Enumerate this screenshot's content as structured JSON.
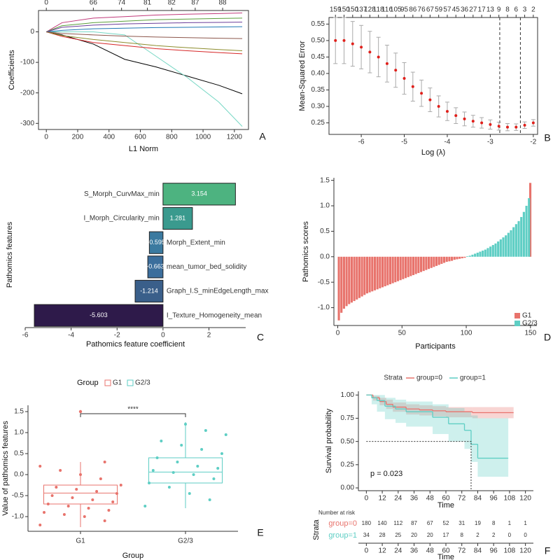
{
  "chart_data": [
    {
      "type": "line",
      "panel_label": "A",
      "xlabel": "L1 Norm",
      "ylabel": "Coefficients",
      "xlim": [
        -50,
        1290
      ],
      "ylim": [
        -320,
        70
      ],
      "xticks": [
        0,
        200,
        400,
        600,
        800,
        1000,
        1200
      ],
      "yticks": [
        0,
        -100,
        -200,
        -300
      ],
      "top_ticks": [
        {
          "value": 0,
          "label": "0"
        },
        {
          "value": 300,
          "label": "66"
        },
        {
          "value": 480,
          "label": "74"
        },
        {
          "value": 645,
          "label": "81"
        },
        {
          "value": 800,
          "label": "82"
        },
        {
          "value": 950,
          "label": "87"
        },
        {
          "value": 1125,
          "label": "88"
        }
      ],
      "x": [
        0,
        100,
        300,
        500,
        700,
        900,
        1100,
        1250
      ],
      "series": [
        {
          "color": "#000000",
          "values": [
            0,
            -10,
            -40,
            -90,
            -115,
            -145,
            -175,
            -203
          ]
        },
        {
          "color": "#76d7c4",
          "values": [
            0,
            0,
            0,
            -10,
            -80,
            -150,
            -230,
            -310
          ]
        },
        {
          "color": "#c0397a",
          "values": [
            0,
            30,
            45,
            50,
            55,
            58,
            60,
            62
          ]
        },
        {
          "color": "#5a9e3a",
          "values": [
            0,
            20,
            30,
            35,
            40,
            42,
            44,
            45
          ]
        },
        {
          "color": "#6a3d9a",
          "values": [
            0,
            15,
            22,
            26,
            28,
            30,
            31,
            32
          ]
        },
        {
          "color": "#d62728",
          "values": [
            0,
            -15,
            -35,
            -45,
            -55,
            -62,
            -68,
            -72
          ]
        },
        {
          "color": "#8c8c2c",
          "values": [
            0,
            -12,
            -25,
            -35,
            -45,
            -52,
            -58,
            -62
          ]
        },
        {
          "color": "#1f77b4",
          "values": [
            0,
            5,
            10,
            12,
            14,
            15,
            16,
            17
          ]
        },
        {
          "color": "#8c564b",
          "values": [
            0,
            -5,
            -10,
            -14,
            -17,
            -19,
            -21,
            -22
          ]
        }
      ]
    },
    {
      "type": "errorbar",
      "panel_label": "B",
      "xlabel": "Log (λ)",
      "ylabel": "Mean-Squared Error",
      "xlim": [
        -6.75,
        -1.9
      ],
      "ylim": [
        0.215,
        0.57
      ],
      "xticks": [
        -6,
        -5,
        -4,
        -3,
        -2
      ],
      "yticks": [
        0.25,
        {
          "value": 0.3,
          "label": "0.30"
        },
        0.35,
        {
          "value": 0.4,
          "label": "0.40"
        },
        0.45,
        {
          "value": 0.5,
          "label": "0.50"
        },
        0.55
      ],
      "x": [
        -6.6,
        -6.4,
        -6.2,
        -6.0,
        -5.8,
        -5.6,
        -5.4,
        -5.2,
        -5.0,
        -4.8,
        -4.6,
        -4.4,
        -4.2,
        -4.0,
        -3.8,
        -3.6,
        -3.4,
        -3.2,
        -3.0,
        -2.8,
        -2.6,
        -2.4,
        -2.2,
        -2.0
      ],
      "values": [
        0.5,
        0.5,
        0.49,
        0.48,
        0.465,
        0.45,
        0.43,
        0.41,
        0.385,
        0.36,
        0.34,
        0.32,
        0.3,
        0.285,
        0.272,
        0.262,
        0.255,
        0.25,
        0.245,
        0.24,
        0.237,
        0.237,
        0.243,
        0.25
      ],
      "errors": [
        0.07,
        0.07,
        0.068,
        0.066,
        0.063,
        0.06,
        0.056,
        0.052,
        0.048,
        0.044,
        0.04,
        0.036,
        0.032,
        0.028,
        0.024,
        0.021,
        0.018,
        0.016,
        0.014,
        0.012,
        0.011,
        0.01,
        0.01,
        0.01
      ],
      "color": "#e0201b",
      "error_color": "#aaaaaa",
      "vlines": [
        -2.78,
        -2.3
      ],
      "top_ticks": [
        {
          "value": -6.6,
          "label": "159"
        },
        {
          "value": -6.4,
          "label": "150"
        },
        {
          "value": -6.2,
          "label": "150"
        },
        {
          "value": -6.0,
          "label": "137"
        },
        {
          "value": -5.8,
          "label": "128"
        },
        {
          "value": -5.6,
          "label": "118"
        },
        {
          "value": -5.4,
          "label": "116"
        },
        {
          "value": -5.2,
          "label": "105"
        },
        {
          "value": -5.0,
          "label": "95"
        },
        {
          "value": -4.8,
          "label": "86"
        },
        {
          "value": -4.6,
          "label": "76"
        },
        {
          "value": -4.4,
          "label": "67"
        },
        {
          "value": -4.2,
          "label": "59"
        },
        {
          "value": -4.0,
          "label": "57"
        },
        {
          "value": -3.8,
          "label": "45"
        },
        {
          "value": -3.6,
          "label": "36"
        },
        {
          "value": -3.4,
          "label": "27"
        },
        {
          "value": -3.2,
          "label": "17"
        },
        {
          "value": -3.0,
          "label": "13"
        },
        {
          "value": -2.8,
          "label": "9"
        },
        {
          "value": -2.6,
          "label": "8"
        },
        {
          "value": -2.4,
          "label": "6"
        },
        {
          "value": -2.2,
          "label": "3"
        },
        {
          "value": -2.0,
          "label": "2"
        }
      ]
    },
    {
      "type": "bar",
      "orientation": "horizontal",
      "panel_label": "C",
      "xlabel": "Pathomics feature coefficient",
      "ylabel": "Pathomics features",
      "xlim": [
        -6,
        3.6
      ],
      "xticks": [
        -6,
        -4,
        -2,
        0,
        2
      ],
      "categories": [
        "S_Morph_CurvMax_min",
        "I_Morph_Circularity_min",
        "Morph_Extent_min",
        "mean_tumor_bed_solidity",
        "Graph_I.S_minEdgeLength_max",
        "I_Texture_Homogeneity_mean"
      ],
      "values": [
        3.154,
        1.281,
        -0.595,
        -0.663,
        -1.214,
        -5.603
      ],
      "colors": [
        "#4db380",
        "#3a9a8e",
        "#3b7aa0",
        "#3b6e9c",
        "#3a5f8a",
        "#2e1a4a"
      ]
    },
    {
      "type": "bar",
      "orientation": "vertical",
      "panel_label": "D",
      "xlabel": "Participants",
      "ylabel": "Pathomics scores",
      "xlim": [
        -3,
        155
      ],
      "ylim": [
        -1.35,
        1.55
      ],
      "xticks": [
        0,
        50,
        100,
        150
      ],
      "yticks": [
        {
          "value": -1,
          "label": "-1.0"
        },
        -0.5,
        {
          "value": 0,
          "label": "0.0"
        },
        0.5,
        {
          "value": 1,
          "label": "1.0"
        },
        1.5
      ],
      "series": [
        {
          "name": "G1",
          "color": "#e8736c",
          "x": [
            1,
            3,
            5,
            7,
            9,
            11,
            13,
            15,
            17,
            19,
            21,
            23,
            25,
            27,
            29,
            31,
            33,
            35,
            37,
            39,
            41,
            43,
            45,
            47,
            49,
            51,
            53,
            55,
            57,
            59,
            61,
            63,
            65,
            67,
            69,
            71,
            73,
            75,
            77,
            79,
            81,
            83,
            85,
            87,
            89,
            91,
            93,
            95,
            97,
            99,
            150
          ],
          "values": [
            -1.25,
            -1.1,
            -1.02,
            -0.97,
            -0.93,
            -0.9,
            -0.87,
            -0.84,
            -0.81,
            -0.78,
            -0.75,
            -0.72,
            -0.7,
            -0.68,
            -0.66,
            -0.64,
            -0.62,
            -0.6,
            -0.58,
            -0.56,
            -0.54,
            -0.52,
            -0.5,
            -0.48,
            -0.46,
            -0.44,
            -0.42,
            -0.4,
            -0.38,
            -0.36,
            -0.34,
            -0.32,
            -0.3,
            -0.28,
            -0.26,
            -0.24,
            -0.22,
            -0.2,
            -0.18,
            -0.16,
            -0.14,
            -0.12,
            -0.1,
            -0.09,
            -0.08,
            -0.06,
            -0.05,
            -0.04,
            -0.03,
            -0.02,
            1.45
          ]
        },
        {
          "name": "G2/3",
          "color": "#5ecec4",
          "x": [
            101,
            103,
            105,
            107,
            109,
            111,
            113,
            115,
            117,
            119,
            121,
            123,
            125,
            127,
            129,
            131,
            133,
            135,
            137,
            139,
            141,
            143,
            145,
            147,
            149
          ],
          "values": [
            0.01,
            0.02,
            0.04,
            0.06,
            0.08,
            0.1,
            0.12,
            0.14,
            0.17,
            0.2,
            0.23,
            0.26,
            0.3,
            0.34,
            0.38,
            0.42,
            0.47,
            0.52,
            0.58,
            0.64,
            0.7,
            0.78,
            0.88,
            1.0,
            1.15
          ]
        }
      ]
    },
    {
      "type": "box",
      "panel_label": "E",
      "xlabel": "Group",
      "ylabel": "Value of pathomics features",
      "legend_title": "Group",
      "annotation": "****",
      "ylim": [
        -1.35,
        1.65
      ],
      "yticks": [
        {
          "value": -1,
          "label": "-1.0"
        },
        -0.5,
        {
          "value": 0,
          "label": "0.0"
        },
        0.5,
        {
          "value": 1,
          "label": "1.0"
        },
        1.5
      ],
      "series": [
        {
          "name": "G1",
          "color": "#e8736c",
          "box": {
            "min": -1.25,
            "q1": -0.7,
            "median": -0.44,
            "q3": -0.25,
            "max": 0.3,
            "outliers": [
              1.5
            ]
          },
          "values": [
            -1.2,
            -1.1,
            -1.0,
            -0.95,
            -0.9,
            -0.85,
            -0.8,
            -0.75,
            -0.7,
            -0.65,
            -0.6,
            -0.55,
            -0.5,
            -0.45,
            -0.4,
            -0.35,
            -0.3,
            -0.25,
            -0.1,
            0.0,
            0.1,
            0.2,
            0.3
          ]
        },
        {
          "name": "G2/3",
          "color": "#5ecec4",
          "box": {
            "min": -0.8,
            "q1": -0.2,
            "median": 0.06,
            "q3": 0.4,
            "max": 1.25,
            "outliers": []
          },
          "values": [
            -0.75,
            -0.6,
            -0.45,
            -0.3,
            -0.2,
            -0.1,
            0.0,
            0.05,
            0.1,
            0.15,
            0.2,
            0.3,
            0.4,
            0.5,
            0.6,
            0.7,
            0.8,
            0.95,
            1.05,
            1.2
          ]
        }
      ]
    },
    {
      "type": "survival",
      "panel_label": "F",
      "xlabel": "Time",
      "ylabel": "Survival probability",
      "legend_title": "Strata",
      "annotation": "p = 0.023",
      "xlim": [
        -6,
        126
      ],
      "ylim": [
        -0.03,
        1.04
      ],
      "xticks": [
        0,
        12,
        24,
        36,
        48,
        60,
        72,
        84,
        96,
        108,
        120
      ],
      "yticks": [
        {
          "value": 0,
          "label": "0.00"
        },
        0.25,
        {
          "value": 0.5,
          "label": "0.50"
        },
        0.75,
        {
          "value": 1,
          "label": "1.00"
        }
      ],
      "median_line": {
        "value": 0.5,
        "time": 79
      },
      "series": [
        {
          "name": "group=0",
          "color": "#e8736c",
          "x": [
            0,
            5,
            10,
            15,
            20,
            30,
            40,
            50,
            60,
            80,
            110
          ],
          "values": [
            1,
            0.97,
            0.93,
            0.9,
            0.87,
            0.85,
            0.84,
            0.83,
            0.82,
            0.81,
            0.81
          ],
          "lower": [
            1,
            0.94,
            0.89,
            0.85,
            0.82,
            0.79,
            0.78,
            0.77,
            0.76,
            0.75,
            0.75
          ],
          "upper": [
            1,
            0.99,
            0.97,
            0.95,
            0.92,
            0.9,
            0.89,
            0.88,
            0.87,
            0.87,
            0.87
          ]
        },
        {
          "name": "group=1",
          "color": "#5ecec4",
          "x": [
            0,
            4,
            8,
            14,
            22,
            30,
            50,
            62,
            74,
            79,
            84,
            106
          ],
          "values": [
            1,
            0.97,
            0.94,
            0.88,
            0.85,
            0.82,
            0.76,
            0.69,
            0.62,
            0.47,
            0.32,
            0.32
          ],
          "lower": [
            1,
            0.9,
            0.82,
            0.74,
            0.7,
            0.66,
            0.58,
            0.5,
            0.42,
            0.28,
            0.12,
            0.12
          ],
          "upper": [
            1,
            1,
            1,
            0.97,
            0.95,
            0.93,
            0.9,
            0.86,
            0.82,
            0.78,
            0.75,
            0.75
          ]
        }
      ],
      "risk_table": {
        "title": "Number at risk",
        "ylabel": "Strata",
        "xlabel": "Time",
        "rows": [
          [
            180,
            140,
            112,
            87,
            67,
            52,
            31,
            19,
            8,
            1,
            1
          ],
          [
            34,
            28,
            25,
            20,
            20,
            17,
            8,
            2,
            2,
            0,
            0
          ]
        ]
      }
    }
  ]
}
